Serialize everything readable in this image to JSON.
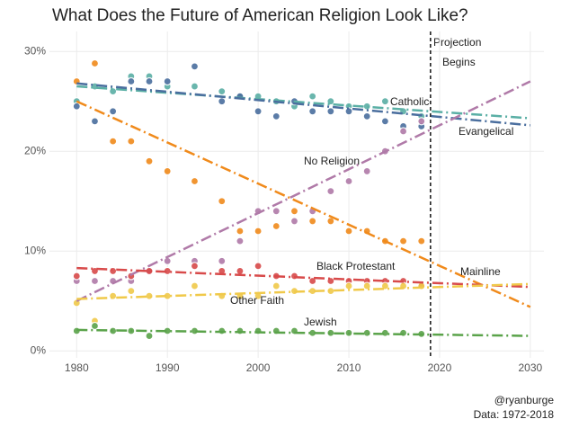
{
  "chart_data": {
    "type": "scatter",
    "title": "What Does the Future of American Religion Look Like?",
    "annotation": [
      "Projection",
      "Begins"
    ],
    "projection_x": 2019,
    "caption": [
      "@ryanburge",
      "Data: 1972-2018"
    ],
    "xlim": [
      1977,
      2031.5
    ],
    "ylim": [
      -0.7,
      32
    ],
    "xticks": [
      1980,
      1990,
      2000,
      2010,
      2020,
      2030
    ],
    "yticks": [
      {
        "value": 0,
        "label": "0%"
      },
      {
        "value": 10,
        "label": "10%"
      },
      {
        "value": 20,
        "label": "20%"
      },
      {
        "value": 30,
        "label": "30%"
      }
    ],
    "grid": true,
    "x": [
      1980,
      1982,
      1984,
      1986,
      1988,
      1990,
      1993,
      1996,
      1998,
      2000,
      2002,
      2004,
      2006,
      2008,
      2010,
      2012,
      2014,
      2016,
      2018
    ],
    "series": [
      {
        "name": "Catholic",
        "color": "#5aafa5",
        "values": [
          25,
          26.5,
          26,
          27.5,
          27.5,
          26.5,
          26.5,
          26,
          25.5,
          25.5,
          25,
          24.5,
          25.5,
          25,
          24.5,
          24.5,
          25,
          24,
          23.5
        ],
        "trend": {
          "x": [
            1980,
            2030
          ],
          "values": [
            26.5,
            23.3
          ]
        }
      },
      {
        "name": "Evangelical",
        "color": "#4a6e9e",
        "values": [
          24.5,
          23,
          24,
          27,
          27,
          27,
          28.5,
          25,
          25.5,
          24,
          23.5,
          25,
          24,
          24,
          24,
          23.5,
          23,
          22.5,
          22.5
        ],
        "trend": {
          "x": [
            1980,
            2030
          ],
          "values": [
            26.8,
            22.6
          ]
        }
      },
      {
        "name": "Mainline",
        "color": "#f08a1b",
        "values": [
          27,
          28.8,
          21,
          21,
          19,
          18,
          17,
          15,
          12,
          12,
          12.5,
          14,
          13,
          13,
          12,
          12,
          11,
          11,
          11
        ],
        "trend": {
          "x": [
            1980,
            2030
          ],
          "values": [
            25,
            4.4
          ]
        }
      },
      {
        "name": "No Religion",
        "color": "#b07aa8",
        "values": [
          7,
          7,
          7,
          7,
          8,
          9,
          9,
          9,
          11,
          14,
          14,
          13,
          14,
          16,
          17,
          18,
          20,
          22,
          23
        ],
        "trend": {
          "x": [
            1980,
            2030
          ],
          "values": [
            5,
            27
          ]
        }
      },
      {
        "name": "Black Protestant",
        "color": "#d84a4a",
        "values": [
          7.5,
          8,
          8,
          7.5,
          8,
          8,
          8.5,
          8,
          8,
          8.5,
          7.5,
          7.5,
          7,
          7,
          7,
          7,
          7,
          7,
          6.5
        ],
        "trend": {
          "x": [
            1980,
            2030
          ],
          "values": [
            8.3,
            6.4
          ]
        }
      },
      {
        "name": "Other Faith",
        "color": "#f0c94a",
        "values": [
          4.8,
          3,
          5.5,
          6,
          5.5,
          5.5,
          6.5,
          5.5,
          5.5,
          5.5,
          6.5,
          6,
          6,
          6,
          6.5,
          6.5,
          6.5,
          6.5,
          6.5
        ],
        "trend": {
          "x": [
            1980,
            2030
          ],
          "values": [
            5.2,
            6.7
          ]
        }
      },
      {
        "name": "Jewish",
        "color": "#5aa34a",
        "values": [
          2,
          2.5,
          2,
          2,
          1.5,
          2,
          2,
          2,
          2,
          2,
          2,
          2,
          1.8,
          1.8,
          1.8,
          1.8,
          1.8,
          1.8,
          1.7
        ],
        "trend": {
          "x": [
            1980,
            2030
          ],
          "values": [
            2.1,
            1.5
          ]
        }
      }
    ]
  }
}
